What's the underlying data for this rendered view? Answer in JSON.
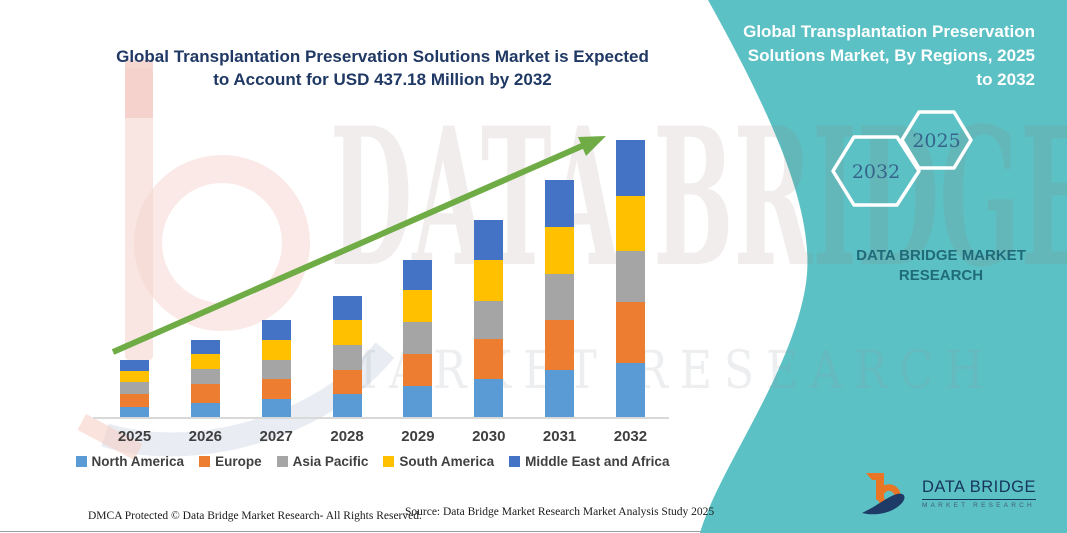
{
  "main": {
    "title": "Global Transplantation Preservation Solutions Market is Expected\nto Account for USD 437.18 Million by 2032",
    "footer_left": "DMCA Protected © Data Bridge Market Research-  All Rights Reserved.",
    "footer_source": "Source: Data Bridge Market Research  Market Analysis Study 2025"
  },
  "side_panel": {
    "title": "Global Transplantation Preservation\nSolutions Market, By Regions, 2025\nto 2032",
    "hexagon_back_label": "2032",
    "hexagon_front_label": "2025",
    "brand_caption": "DATA BRIDGE MARKET\nRESEARCH",
    "accent_color": "#5CC1C4"
  },
  "logo": {
    "name": "DATA BRIDGE",
    "tagline": "MARKET RESEARCH",
    "orange": "#E87624",
    "navy": "#1E3A66"
  },
  "watermark": {
    "line1": "DATA BRIDGE",
    "line2": "MARKET RESEARCH"
  },
  "chart_data": {
    "type": "bar",
    "stacked": true,
    "title": "Global Transplantation Preservation Solutions Market is Expected to Account for USD 437.18 Million by 2032",
    "unit": "USD Million",
    "xlabel": "",
    "ylabel": "",
    "legend_position": "bottom",
    "grid": false,
    "y_axis_visible": false,
    "trend_arrow_color": "#6FAC46",
    "categories": [
      "2025",
      "2026",
      "2027",
      "2028",
      "2029",
      "2030",
      "2031",
      "2032"
    ],
    "series": [
      {
        "name": "North America",
        "color": "#5B9BD5",
        "values": [
          18,
          23,
          30,
          38,
          51,
          62,
          76,
          87
        ]
      },
      {
        "name": "Europe",
        "color": "#ED7D31",
        "values": [
          19,
          30,
          31,
          38,
          50,
          63,
          78,
          96
        ]
      },
      {
        "name": "Asia Pacific",
        "color": "#A5A5A5",
        "values": [
          19,
          24,
          31,
          39,
          50,
          59,
          72,
          79
        ]
      },
      {
        "name": "South America",
        "color": "#FFC000",
        "values": [
          18,
          23,
          31,
          39,
          50,
          64,
          75,
          87
        ]
      },
      {
        "name": "Middle East and Africa",
        "color": "#4472C4",
        "values": [
          17,
          22,
          31,
          38,
          47,
          64,
          74,
          88.18
        ]
      }
    ],
    "estimated_totals": [
      91,
      122,
      154,
      192,
      248,
      312,
      375,
      437.18
    ],
    "highlight_value_2032": "USD 437.18 Million"
  }
}
